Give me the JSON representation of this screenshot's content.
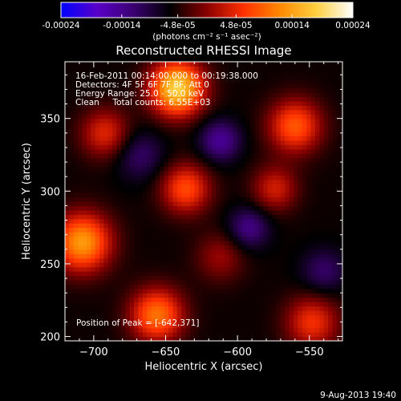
{
  "colorbar": {
    "tick_labels": [
      "-0.00024",
      "-0.00014",
      "-4.8e-05",
      "4.8e-05",
      "0.00014",
      "0.00024"
    ],
    "tick_values": [
      -0.00024,
      -0.00014,
      -4.8e-05,
      4.8e-05,
      0.00014,
      0.00024
    ],
    "range": [
      -0.00024,
      0.00024
    ],
    "unit_label": "(photons cm⁻² s⁻¹ asec⁻²)",
    "stops": [
      "#0000ff",
      "#5a00c8",
      "#3a0070",
      "#000000",
      "#8a0000",
      "#ff3000",
      "#ff8800",
      "#ffd040",
      "#ffffff"
    ]
  },
  "chart_data": {
    "type": "heatmap",
    "title": "Reconstructed RHESSI Image",
    "xlabel": "Heliocentric X (arcsec)",
    "ylabel": "Heliocentric Y (arcsec)",
    "xlim": [
      -720,
      -527
    ],
    "ylim": [
      197,
      389
    ],
    "x_ticks": [
      -700,
      -650,
      -600,
      -550
    ],
    "y_ticks": [
      200,
      250,
      300,
      350
    ],
    "x_tick_labels": [
      "−700",
      "−650",
      "−600",
      "−550"
    ],
    "y_tick_labels": [
      "200",
      "250",
      "300",
      "350"
    ],
    "sources": [
      {
        "x": -642,
        "y": 371,
        "amp": 0.00024,
        "sigma": 13
      },
      {
        "x": -708,
        "y": 265,
        "amp": 0.00019,
        "sigma": 14
      },
      {
        "x": -636,
        "y": 302,
        "amp": 0.00013,
        "sigma": 12
      },
      {
        "x": -656,
        "y": 215,
        "amp": 0.00016,
        "sigma": 13
      },
      {
        "x": -560,
        "y": 345,
        "amp": 0.00014,
        "sigma": 13
      },
      {
        "x": -574,
        "y": 302,
        "amp": 9e-05,
        "sigma": 11
      },
      {
        "x": -548,
        "y": 210,
        "amp": 0.00011,
        "sigma": 13
      },
      {
        "x": -692,
        "y": 340,
        "amp": 0.0001,
        "sigma": 12
      },
      {
        "x": -612,
        "y": 255,
        "amp": 6e-05,
        "sigma": 12
      },
      {
        "x": -612,
        "y": 335,
        "amp": -9e-05,
        "sigma": 10
      },
      {
        "x": -592,
        "y": 275,
        "amp": -8e-05,
        "sigma": 10
      },
      {
        "x": -668,
        "y": 325,
        "amp": -6e-05,
        "sigma": 12
      },
      {
        "x": -540,
        "y": 245,
        "amp": -6e-05,
        "sigma": 11
      }
    ]
  },
  "annotations": {
    "line1": "16-Feb-2011 00:14:00.000 to 00:19:38.000",
    "line2": "Detectors: 4F 5F 6F 7F 8F, Att 0",
    "line3": "Energy Range: 25.0 - 50.0 keV",
    "line4": "Clean     Total counts: 6.55E+03",
    "peak": "Position of Peak = [-642,371]"
  },
  "timestamp": "9-Aug-2013 19:40"
}
